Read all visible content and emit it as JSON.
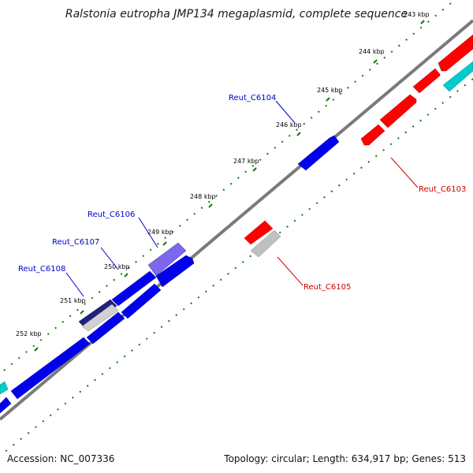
{
  "title": "Ralstonia eutropha JMP134 megaplasmid, complete sequence",
  "footer": {
    "accession": "Accession: NC_007336",
    "summary": "Topology: circular; Length: 634,917 bp; Genes: 513"
  },
  "ticks": [
    "243 kbp",
    "244 kbp",
    "245 kbp",
    "246 kbp",
    "247 kbp",
    "248 kbp",
    "249 kbp",
    "250 kbp",
    "251 kbp",
    "252 kbp"
  ],
  "gene_labels": [
    {
      "name": "Reut_C6104",
      "color": "#0000cc"
    },
    {
      "name": "Reut_C6103",
      "color": "#cc0000"
    },
    {
      "name": "Reut_C6106",
      "color": "#0000cc"
    },
    {
      "name": "Reut_C6107",
      "color": "#0000cc"
    },
    {
      "name": "Reut_C6108",
      "color": "#0000cc"
    },
    {
      "name": "Reut_C6105",
      "color": "#cc0000"
    }
  ],
  "colors": {
    "forward_strand": "#ff0000",
    "reverse_strand": "#0000ff",
    "rna": "#00cccc",
    "pseudo": "#c0c0c0",
    "highlight": "#7b68ee",
    "backbone": "#808080",
    "tick_dots": "#006600"
  }
}
